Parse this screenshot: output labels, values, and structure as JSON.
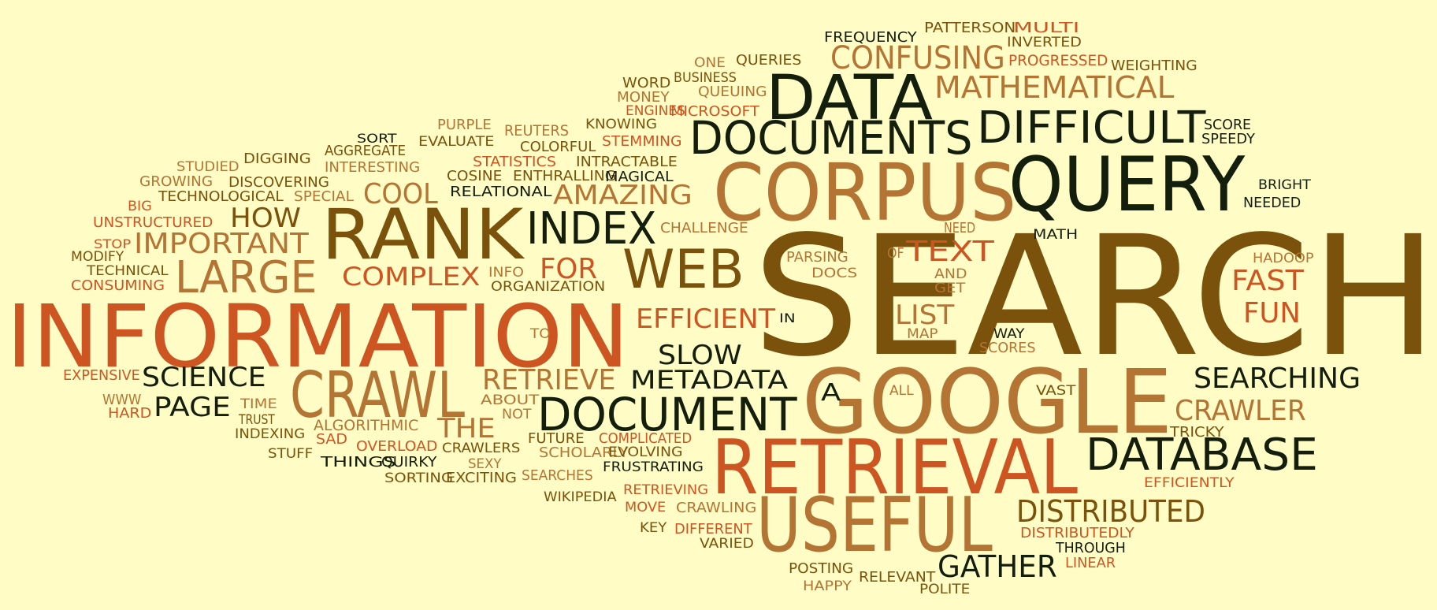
{
  "colors": {
    "background": "#fffcc5",
    "dark": "#141e0c",
    "brown": "#7a520b",
    "tan": "#b47434",
    "orange": "#cc5522"
  },
  "words": [
    {
      "text": "SEARCH",
      "c": "brown"
    },
    {
      "text": "INFORMATION",
      "c": "orange"
    },
    {
      "text": "GOOGLE",
      "c": "tan"
    },
    {
      "text": "CORPUS",
      "c": "tan"
    },
    {
      "text": "QUERY",
      "c": "dark"
    },
    {
      "text": "RETRIEVAL",
      "c": "orange"
    },
    {
      "text": "USEFUL",
      "c": "tan"
    },
    {
      "text": "RANK",
      "c": "brown"
    },
    {
      "text": "DATA",
      "c": "dark"
    },
    {
      "text": "DOCUMENTS",
      "c": "dark"
    },
    {
      "text": "DIFFICULT",
      "c": "dark"
    },
    {
      "text": "CRAWL",
      "c": "tan"
    },
    {
      "text": "WEB",
      "c": "brown"
    },
    {
      "text": "DOCUMENT",
      "c": "dark"
    },
    {
      "text": "DATABASE",
      "c": "dark"
    },
    {
      "text": "INDEX",
      "c": "dark"
    },
    {
      "text": "LARGE",
      "c": "tan"
    },
    {
      "text": "DISTRIBUTED",
      "c": "brown"
    },
    {
      "text": "CONFUSING",
      "c": "tan"
    },
    {
      "text": "MATHEMATICAL",
      "c": "tan"
    },
    {
      "text": "GATHER",
      "c": "dark"
    },
    {
      "text": "SEARCHING",
      "c": "dark"
    },
    {
      "text": "IMPORTANT",
      "c": "tan"
    },
    {
      "text": "RETRIEVE",
      "c": "tan"
    },
    {
      "text": "METADATA",
      "c": "dark"
    },
    {
      "text": "AMAZING",
      "c": "tan"
    },
    {
      "text": "EFFICIENT",
      "c": "orange"
    },
    {
      "text": "CRAWLER",
      "c": "tan"
    },
    {
      "text": "COMPLEX",
      "c": "orange"
    },
    {
      "text": "SCIENCE",
      "c": "dark"
    },
    {
      "text": "PAGE",
      "c": "dark"
    },
    {
      "text": "SLOW",
      "c": "dark"
    },
    {
      "text": "TEXT",
      "c": "orange"
    },
    {
      "text": "FAST",
      "c": "orange"
    },
    {
      "text": "FUN",
      "c": "orange"
    },
    {
      "text": "HOW",
      "c": "brown"
    },
    {
      "text": "COOL",
      "c": "tan"
    },
    {
      "text": "THE",
      "c": "tan"
    },
    {
      "text": "LIST",
      "c": "tan"
    },
    {
      "text": "FOR",
      "c": "orange"
    },
    {
      "text": "A",
      "c": "dark"
    },
    {
      "text": "FREQUENCY",
      "c": "dark"
    },
    {
      "text": "PATTERSON",
      "c": "brown"
    },
    {
      "text": "MULTI",
      "c": "orange"
    },
    {
      "text": "INVERTED",
      "c": "brown"
    },
    {
      "text": "PROGRESSED",
      "c": "orange"
    },
    {
      "text": "WEIGHTING",
      "c": "brown"
    },
    {
      "text": "ONE",
      "c": "tan"
    },
    {
      "text": "QUERIES",
      "c": "brown"
    },
    {
      "text": "WORD",
      "c": "brown"
    },
    {
      "text": "BUSINESS",
      "c": "brown"
    },
    {
      "text": "MONEY",
      "c": "tan"
    },
    {
      "text": "QUEUING",
      "c": "tan"
    },
    {
      "text": "ENGINES",
      "c": "orange"
    },
    {
      "text": "MICROSOFT",
      "c": "orange"
    },
    {
      "text": "SCORE",
      "c": "dark"
    },
    {
      "text": "SPEEDY",
      "c": "dark"
    },
    {
      "text": "PURPLE",
      "c": "tan"
    },
    {
      "text": "REUTERS",
      "c": "tan"
    },
    {
      "text": "KNOWING",
      "c": "brown"
    },
    {
      "text": "SORT",
      "c": "dark"
    },
    {
      "text": "EVALUATE",
      "c": "brown"
    },
    {
      "text": "COLORFUL",
      "c": "brown"
    },
    {
      "text": "STEMMING",
      "c": "orange"
    },
    {
      "text": "DIGGING",
      "c": "brown"
    },
    {
      "text": "AGGREGATE",
      "c": "brown"
    },
    {
      "text": "STUDIED",
      "c": "tan"
    },
    {
      "text": "INTERESTING",
      "c": "tan"
    },
    {
      "text": "STATISTICS",
      "c": "orange"
    },
    {
      "text": "INTRACTABLE",
      "c": "brown"
    },
    {
      "text": "GROWING",
      "c": "tan"
    },
    {
      "text": "DISCOVERING",
      "c": "brown"
    },
    {
      "text": "COSINE",
      "c": "brown"
    },
    {
      "text": "ENTHRALLING",
      "c": "brown"
    },
    {
      "text": "MAGICAL",
      "c": "dark"
    },
    {
      "text": "BRIGHT",
      "c": "dark"
    },
    {
      "text": "TECHNOLOGICAL",
      "c": "brown"
    },
    {
      "text": "SPECIAL",
      "c": "tan"
    },
    {
      "text": "RELATIONAL",
      "c": "dark"
    },
    {
      "text": "NEEDED",
      "c": "dark"
    },
    {
      "text": "BIG",
      "c": "orange"
    },
    {
      "text": "UNSTRUCTURED",
      "c": "orange"
    },
    {
      "text": "CHALLENGE",
      "c": "tan"
    },
    {
      "text": "NEED",
      "c": "tan"
    },
    {
      "text": "MATH",
      "c": "dark"
    },
    {
      "text": "STOP",
      "c": "orange"
    },
    {
      "text": "MODIFY",
      "c": "brown"
    },
    {
      "text": "PARSING",
      "c": "tan"
    },
    {
      "text": "OF",
      "c": "tan"
    },
    {
      "text": "HADOOP",
      "c": "tan"
    },
    {
      "text": "TECHNICAL",
      "c": "brown"
    },
    {
      "text": "CONSUMING",
      "c": "orange"
    },
    {
      "text": "INFO",
      "c": "tan"
    },
    {
      "text": "DOCS",
      "c": "tan"
    },
    {
      "text": "AND",
      "c": "tan"
    },
    {
      "text": "ORGANIZATION",
      "c": "brown"
    },
    {
      "text": "GET",
      "c": "tan"
    },
    {
      "text": "IN",
      "c": "dark"
    },
    {
      "text": "TO",
      "c": "tan"
    },
    {
      "text": "MAP",
      "c": "tan"
    },
    {
      "text": "WAY",
      "c": "dark"
    },
    {
      "text": "SCORES",
      "c": "tan"
    },
    {
      "text": "EXPENSIVE",
      "c": "orange"
    },
    {
      "text": "ALL",
      "c": "tan"
    },
    {
      "text": "VAST",
      "c": "brown"
    },
    {
      "text": "WWW",
      "c": "tan"
    },
    {
      "text": "TIME",
      "c": "tan"
    },
    {
      "text": "ABOUT",
      "c": "tan"
    },
    {
      "text": "HARD",
      "c": "orange"
    },
    {
      "text": "TRUST",
      "c": "brown"
    },
    {
      "text": "NOT",
      "c": "tan"
    },
    {
      "text": "INDEXING",
      "c": "brown"
    },
    {
      "text": "ALGORITHMIC",
      "c": "tan"
    },
    {
      "text": "FUTURE",
      "c": "brown"
    },
    {
      "text": "COMPLICATED",
      "c": "orange"
    },
    {
      "text": "TRICKY",
      "c": "brown"
    },
    {
      "text": "SAD",
      "c": "orange"
    },
    {
      "text": "STUFF",
      "c": "brown"
    },
    {
      "text": "OVERLOAD",
      "c": "orange"
    },
    {
      "text": "CRAWLERS",
      "c": "brown"
    },
    {
      "text": "SCHOLARLY",
      "c": "tan"
    },
    {
      "text": "EVOLVING",
      "c": "brown"
    },
    {
      "text": "THINGS",
      "c": "dark"
    },
    {
      "text": "QUIRKY",
      "c": "dark"
    },
    {
      "text": "SEXY",
      "c": "tan"
    },
    {
      "text": "FRUSTRATING",
      "c": "dark"
    },
    {
      "text": "SORTING",
      "c": "brown"
    },
    {
      "text": "EXCITING",
      "c": "brown"
    },
    {
      "text": "SEARCHES",
      "c": "tan"
    },
    {
      "text": "EFFICIENTLY",
      "c": "orange"
    },
    {
      "text": "RETRIEVING",
      "c": "orange"
    },
    {
      "text": "WIKIPEDIA",
      "c": "brown"
    },
    {
      "text": "MOVE",
      "c": "orange"
    },
    {
      "text": "CRAWLING",
      "c": "tan"
    },
    {
      "text": "KEY",
      "c": "brown"
    },
    {
      "text": "DIFFERENT",
      "c": "orange"
    },
    {
      "text": "DISTRIBUTEDLY",
      "c": "orange"
    },
    {
      "text": "VARIED",
      "c": "brown"
    },
    {
      "text": "THROUGH",
      "c": "dark"
    },
    {
      "text": "LINEAR",
      "c": "orange"
    },
    {
      "text": "POSTING",
      "c": "brown"
    },
    {
      "text": "RELEVANT",
      "c": "brown"
    },
    {
      "text": "HAPPY",
      "c": "tan"
    },
    {
      "text": "POLITE",
      "c": "brown"
    }
  ]
}
